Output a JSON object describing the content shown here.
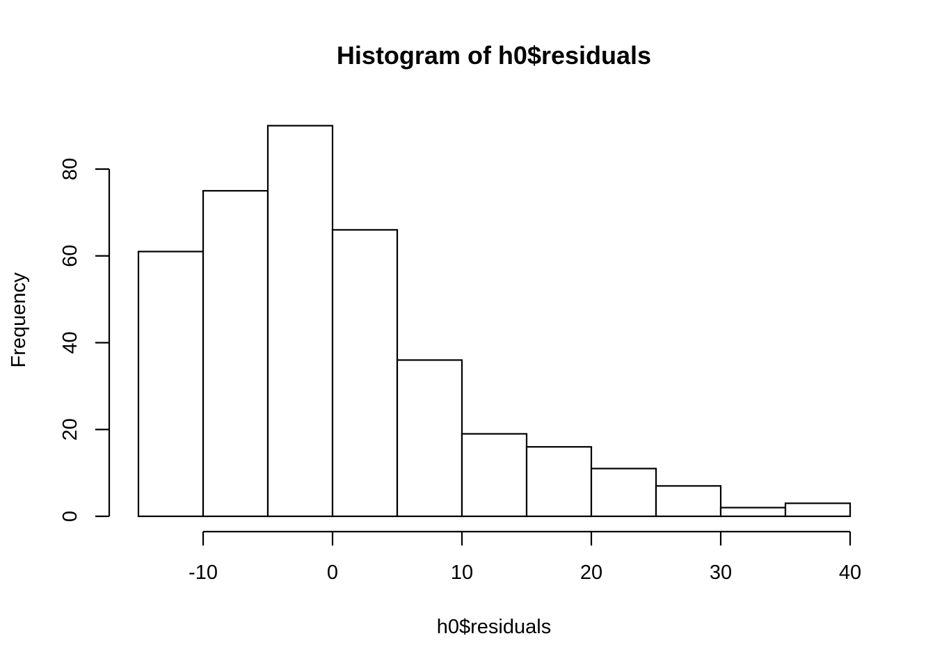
{
  "chart_data": {
    "type": "bar",
    "title": "Histogram of h0$residuals",
    "xlabel": "h0$residuals",
    "ylabel": "Frequency",
    "bin_edges": [
      -15,
      -10,
      -5,
      0,
      5,
      10,
      15,
      20,
      25,
      30,
      35,
      40
    ],
    "values": [
      61,
      75,
      90,
      66,
      36,
      19,
      16,
      11,
      7,
      2,
      3
    ],
    "xlim": [
      -15,
      40
    ],
    "ylim": [
      0,
      90
    ],
    "x_ticks": [
      -10,
      0,
      10,
      20,
      30,
      40
    ],
    "x_tick_labels": [
      "-10",
      "0",
      "10",
      "20",
      "30",
      "40"
    ],
    "y_ticks": [
      0,
      20,
      40,
      60,
      80
    ],
    "y_tick_labels": [
      "0",
      "20",
      "40",
      "60",
      "80"
    ],
    "grid": false,
    "legend": "none",
    "colors": {
      "bar_fill": "#ffffff",
      "bar_stroke": "#000000"
    }
  }
}
